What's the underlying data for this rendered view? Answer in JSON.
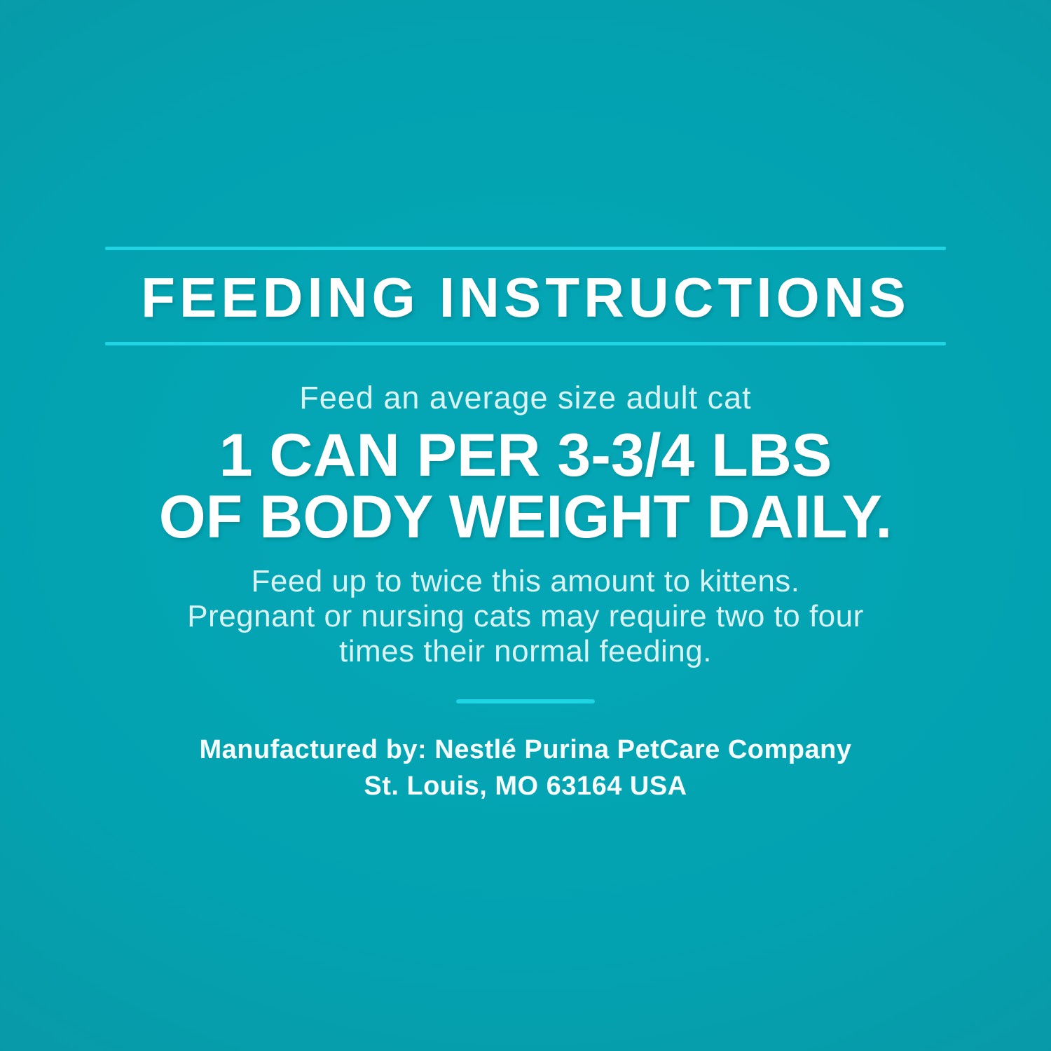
{
  "label": {
    "background_center_color": "#04a7b6",
    "background_edge_color": "#10909c",
    "accent_line_color": "#1fd4e3",
    "heading": "FEEDING INSTRUCTIONS",
    "feeding": {
      "intro": "Feed an average size adult cat",
      "amount_line1": "1 CAN PER 3-3/4 LBS",
      "amount_line2": "OF BODY WEIGHT DAILY.",
      "note_line1": "Feed up to twice this amount to kittens.",
      "note_line2": "Pregnant or nursing cats may require two to four",
      "note_line3": "times their normal feeding."
    },
    "manufacturer": {
      "line1": "Manufactured by: Nestlé Purina PetCare Company",
      "line2": "St. Louis, MO 63164 USA"
    }
  }
}
